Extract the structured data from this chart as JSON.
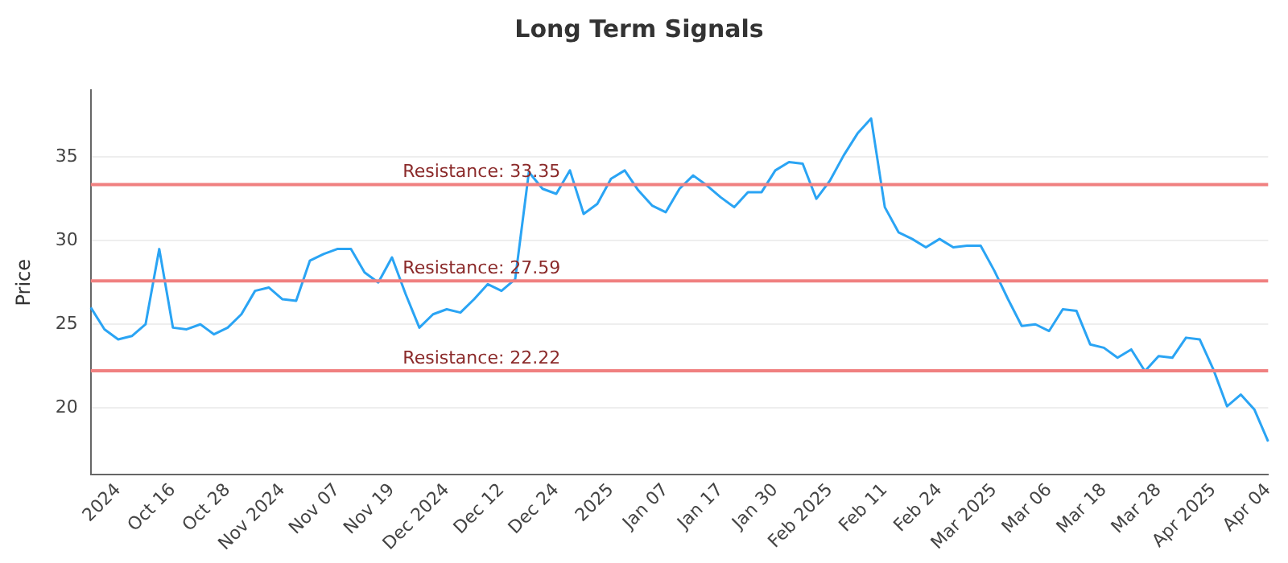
{
  "chart_data": {
    "type": "line",
    "title": "Long Term Signals",
    "ylabel": "Price",
    "categories": [
      null,
      null,
      "2024",
      null,
      null,
      null,
      "Oct 16",
      null,
      null,
      null,
      "Oct 28",
      null,
      null,
      null,
      "Nov 2024",
      null,
      null,
      null,
      "Nov 07",
      null,
      null,
      null,
      "Nov 19",
      null,
      null,
      null,
      "Dec 2024",
      null,
      null,
      null,
      "Dec 12",
      null,
      null,
      null,
      "Dec 24",
      null,
      null,
      null,
      "2025",
      null,
      null,
      null,
      "Jan 07",
      null,
      null,
      null,
      "Jan 17",
      null,
      null,
      null,
      "Jan 30",
      null,
      null,
      null,
      "Feb 2025",
      null,
      null,
      null,
      "Feb 11",
      null,
      null,
      null,
      "Feb 24",
      null,
      null,
      null,
      "Mar 2025",
      null,
      null,
      null,
      "Mar 06",
      null,
      null,
      null,
      "Mar 18",
      null,
      null,
      null,
      "Mar 28",
      null,
      null,
      null,
      "Apr 2025",
      null,
      null,
      null,
      "Apr 04"
    ],
    "series": [
      {
        "color": "#2aa4f4",
        "values": [
          26.0,
          24.7,
          24.1,
          24.3,
          25.0,
          29.5,
          24.8,
          24.7,
          25.0,
          24.4,
          24.8,
          25.6,
          27.0,
          27.2,
          26.5,
          26.4,
          28.8,
          29.2,
          29.5,
          29.5,
          28.1,
          27.5,
          29.0,
          26.8,
          24.8,
          25.6,
          25.9,
          25.7,
          26.5,
          27.4,
          27.0,
          27.7,
          34.1,
          33.1,
          32.8,
          34.2,
          31.6,
          32.2,
          33.7,
          34.2,
          33.0,
          32.1,
          31.7,
          33.1,
          33.9,
          33.3,
          32.6,
          32.0,
          32.9,
          32.9,
          34.2,
          34.7,
          34.6,
          32.5,
          33.6,
          35.1,
          36.4,
          37.3,
          32.0,
          30.5,
          30.1,
          29.6,
          30.1,
          29.6,
          29.7,
          29.7,
          28.2,
          26.5,
          24.9,
          25.0,
          24.6,
          25.9,
          25.8,
          23.8,
          23.6,
          23.0,
          23.5,
          22.2,
          23.1,
          23.0,
          24.2,
          24.1,
          22.3,
          20.1,
          20.8,
          19.9,
          18.0
        ]
      }
    ],
    "ylim": [
      16,
      39
    ],
    "yticks": [
      20,
      25,
      30,
      35
    ],
    "grid": "y",
    "marker": "none",
    "line_style": "solid",
    "legend": false,
    "ref_lines": [
      {
        "axis": "y",
        "value": 33.35,
        "label": "Resistance: 33.35",
        "color": "#f08080"
      },
      {
        "axis": "y",
        "value": 27.59,
        "label": "Resistance: 27.59",
        "color": "#f08080"
      },
      {
        "axis": "y",
        "value": 22.22,
        "label": "Resistance: 22.22",
        "color": "#f08080"
      }
    ]
  }
}
